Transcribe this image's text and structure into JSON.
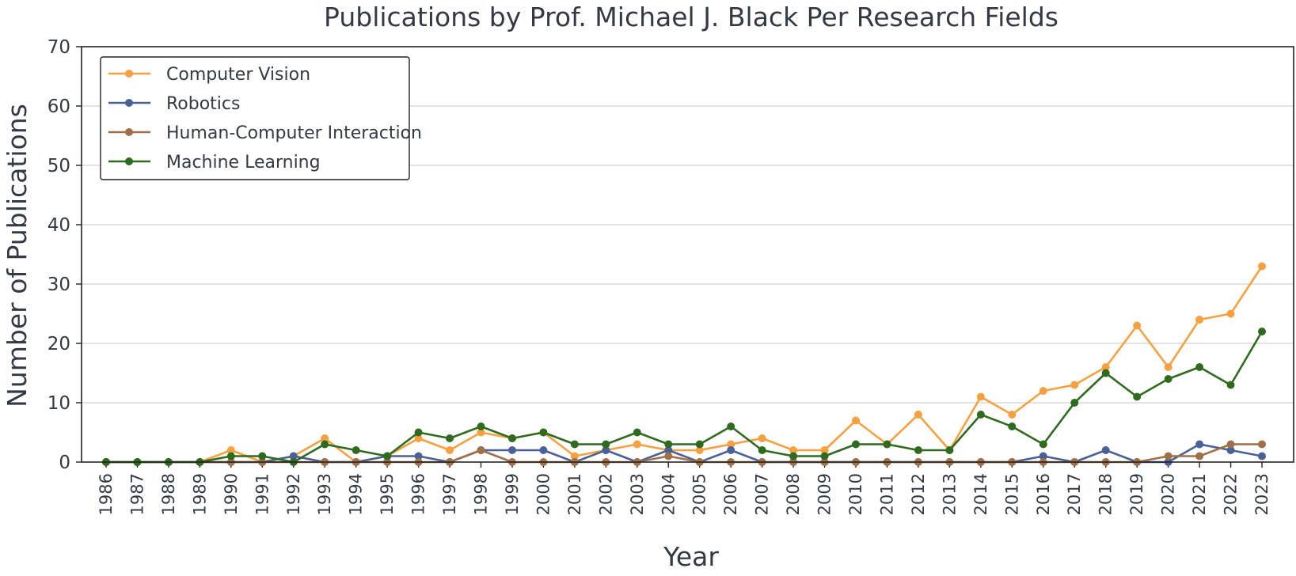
{
  "chart_data": {
    "type": "line",
    "title": "Publications by Prof. Michael J. Black Per Research Fields",
    "xlabel": "Year",
    "ylabel": "Number of Publications",
    "ylim": [
      0,
      70
    ],
    "yticks": [
      0,
      10,
      20,
      30,
      40,
      50,
      60,
      70
    ],
    "grid": true,
    "legend_position": "top-left",
    "x": [
      "1986",
      "1987",
      "1988",
      "1989",
      "1990",
      "1991",
      "1992",
      "1993",
      "1994",
      "1995",
      "1996",
      "1997",
      "1998",
      "1999",
      "2000",
      "2001",
      "2002",
      "2003",
      "2004",
      "2005",
      "2006",
      "2007",
      "2008",
      "2009",
      "2010",
      "2011",
      "2012",
      "2013",
      "2014",
      "2015",
      "2016",
      "2017",
      "2018",
      "2019",
      "2020",
      "2021",
      "2022",
      "2023"
    ],
    "series": [
      {
        "name": "Computer Vision",
        "color": "#f7a040",
        "values": [
          0,
          0,
          0,
          0,
          2,
          0,
          1,
          4,
          0,
          1,
          4,
          2,
          5,
          4,
          5,
          1,
          2,
          3,
          2,
          2,
          3,
          4,
          2,
          2,
          7,
          3,
          8,
          2,
          11,
          8,
          12,
          13,
          16,
          23,
          16,
          24,
          25,
          33
        ]
      },
      {
        "name": "Robotics",
        "color": "#4a6098",
        "values": [
          0,
          0,
          0,
          0,
          0,
          0,
          1,
          0,
          0,
          1,
          1,
          0,
          2,
          2,
          2,
          0,
          2,
          0,
          2,
          0,
          2,
          0,
          0,
          0,
          0,
          0,
          0,
          0,
          0,
          0,
          1,
          0,
          2,
          0,
          0,
          3,
          2,
          1
        ]
      },
      {
        "name": "Human-Computer Interaction",
        "color": "#a07048",
        "values": [
          0,
          0,
          0,
          0,
          0,
          0,
          0,
          0,
          0,
          0,
          0,
          0,
          2,
          0,
          0,
          0,
          0,
          0,
          1,
          0,
          0,
          0,
          0,
          0,
          0,
          0,
          0,
          0,
          0,
          0,
          0,
          0,
          0,
          0,
          1,
          1,
          3,
          3
        ]
      },
      {
        "name": "Machine Learning",
        "color": "#2f6b1f",
        "values": [
          0,
          0,
          0,
          0,
          1,
          1,
          0,
          3,
          2,
          1,
          5,
          4,
          6,
          4,
          5,
          3,
          3,
          5,
          3,
          3,
          6,
          2,
          1,
          1,
          3,
          3,
          2,
          2,
          8,
          6,
          3,
          10,
          15,
          11,
          14,
          16,
          13,
          22
        ]
      }
    ]
  }
}
